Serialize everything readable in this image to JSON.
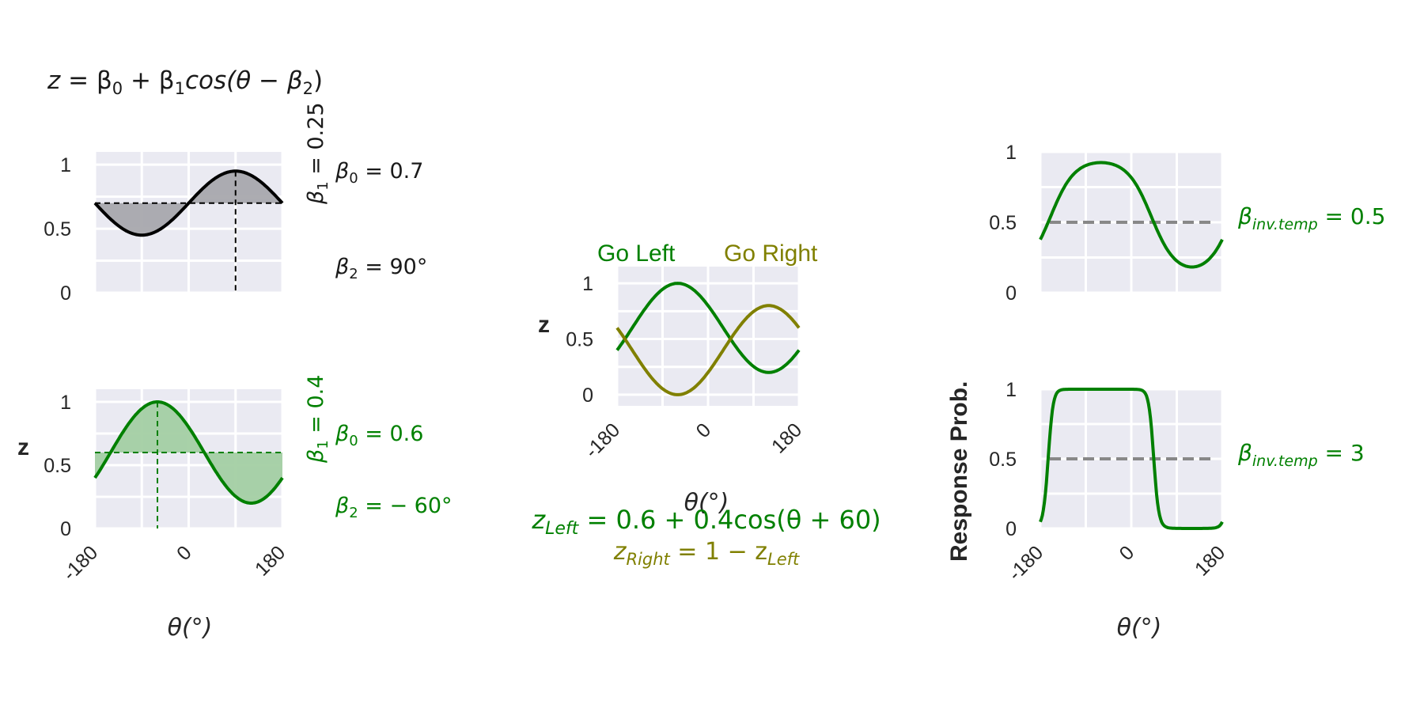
{
  "colors": {
    "black": "#000000",
    "green": "#008000",
    "olive": "#808000",
    "gray": "#888888",
    "fill_green": "#a3cfa3",
    "fill_gray": "#a8a8ad"
  },
  "header_equation": {
    "lhs": "z",
    "eq": " = β",
    "b0": "0",
    "plus": " + β",
    "b1": "1",
    "cos": "cos(θ − β",
    "b2": "2",
    "close": ")"
  },
  "panel_top_left": {
    "b1_label": {
      "beta": "β",
      "sub": "1",
      "rest": " = 0.25"
    },
    "b0_label": {
      "beta": "β",
      "sub": "0",
      "rest": " = 0.7"
    },
    "b2_label": {
      "beta": "β",
      "sub": "2",
      "rest": " = 90°"
    }
  },
  "panel_bottom_left": {
    "ylabel": "z",
    "xlabel": "θ(°)",
    "b1_label": {
      "beta": "β",
      "sub": "1",
      "rest": " = 0.4"
    },
    "b0_label": {
      "beta": "β",
      "sub": "0",
      "rest": " = 0.6"
    },
    "b2_label": {
      "beta": "β",
      "sub": "2",
      "rest": " = − 60°"
    }
  },
  "panel_middle": {
    "ylabel": "z",
    "xlabel": "θ(°)",
    "legend_left": "Go Left",
    "legend_right": "Go Right",
    "eq_left": {
      "z": "z",
      "sub": "Left",
      "rest": " = 0.6 + 0.4cos(θ + 60)"
    },
    "eq_right": {
      "z": "z",
      "sub": "Right",
      "rest": " = 1 − z",
      "sub2": "Left"
    }
  },
  "panel_right": {
    "ylabel": "Response Prob.",
    "xlabel": "θ(°)",
    "top_label": {
      "beta": "β",
      "sub": "inv.temp",
      "rest": " = 0.5"
    },
    "bottom_label": {
      "beta": "β",
      "sub": "inv.temp",
      "rest": " = 3"
    }
  },
  "chart_data": [
    {
      "id": "top_left",
      "type": "line",
      "xlim": [
        -180,
        180
      ],
      "ylim": [
        0,
        1.1
      ],
      "yticks": [
        "0",
        "0.5",
        "1"
      ],
      "xticks": [],
      "series": [
        {
          "b0": 0.7,
          "b1": 0.25,
          "b2": 90,
          "color": "black",
          "fill_to_baseline": true,
          "guides": true
        }
      ]
    },
    {
      "id": "bottom_left",
      "type": "line",
      "xlim": [
        -180,
        180
      ],
      "ylim": [
        0,
        1.1
      ],
      "yticks": [
        "0",
        "0.5",
        "1"
      ],
      "xticks": [
        "-180",
        "0",
        "180"
      ],
      "series": [
        {
          "b0": 0.6,
          "b1": 0.4,
          "b2": -60,
          "color": "green",
          "fill_to_baseline": true,
          "guides": true
        }
      ]
    },
    {
      "id": "middle",
      "type": "line",
      "xlim": [
        -180,
        180
      ],
      "ylim": [
        -0.1,
        1.15
      ],
      "yticks": [
        "0",
        "0.5",
        "1"
      ],
      "xticks": [
        "-180",
        "0",
        "180"
      ],
      "series": [
        {
          "name": "Go Left",
          "b0": 0.6,
          "b1": 0.4,
          "b2": -60,
          "color": "green"
        },
        {
          "name": "Go Right",
          "b0": 0.4,
          "b1": -0.4,
          "b2": -60,
          "color": "olive"
        }
      ]
    },
    {
      "id": "top_right",
      "type": "line",
      "xlim": [
        -180,
        180
      ],
      "ylim": [
        0,
        1
      ],
      "yticks": [
        "0",
        "0.5",
        "1"
      ],
      "xticks": [],
      "series": [
        {
          "b0": 0.6,
          "b1": 0.4,
          "b2": -60,
          "inv_temp": 0.5,
          "color": "green",
          "dashed_level": 0.5
        }
      ]
    },
    {
      "id": "bottom_right",
      "type": "line",
      "xlim": [
        -180,
        180
      ],
      "ylim": [
        0,
        1
      ],
      "yticks": [
        "0",
        "0.5",
        "1"
      ],
      "xticks": [
        "-180",
        "0",
        "180"
      ],
      "series": [
        {
          "b0": 0.6,
          "b1": 0.4,
          "b2": -60,
          "inv_temp": 3,
          "color": "green",
          "dashed_level": 0.5
        }
      ]
    }
  ]
}
